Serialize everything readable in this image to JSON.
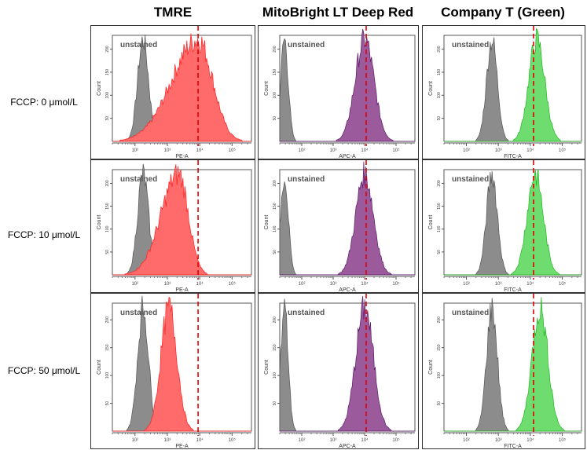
{
  "columns": [
    "TMRE",
    "MitoBright LT Deep Red",
    "Company T (Green)"
  ],
  "rows": [
    "FCCP: 0 μmol/L",
    "FCCP: 10 μmol/L",
    "FCCP: 50 μmol/L"
  ],
  "unstained_label": "unstained",
  "chart_data": {
    "type": "histogram-grid",
    "xscale": "log10",
    "xlim_log10": [
      1.3,
      5.6
    ],
    "x_ticks": [
      "10²",
      "10³",
      "10⁴",
      "10⁵"
    ],
    "ylabel": "Count",
    "y_ticks": [
      "50",
      "100",
      "150",
      "200"
    ],
    "xlabels": [
      "PE-A",
      "APC-A",
      "FITC-A"
    ],
    "colors": {
      "unstained": "#8c8c8c",
      "TMRE": "#ff6b6b",
      "MitoBright LT Deep Red": "#9b5a9b",
      "Company T (Green)": "#6fdc6f",
      "reference": "#e00000"
    },
    "reference_line_log10": [
      3.95,
      4.05,
      4.1
    ],
    "panels": [
      [
        {
          "unstained_peak": 2.25,
          "stained_peak": 3.95,
          "stained_width": 0.45,
          "skew": "left"
        },
        {
          "unstained_peak": 1.45,
          "stained_peak": 4.0,
          "stained_width": 0.3
        },
        {
          "unstained_peak": 2.8,
          "stained_peak": 4.2,
          "stained_width": 0.25
        }
      ],
      [
        {
          "unstained_peak": 2.25,
          "stained_peak": 3.35,
          "stained_width": 0.3,
          "skew": "left"
        },
        {
          "unstained_peak": 1.45,
          "stained_peak": 4.0,
          "stained_width": 0.28
        },
        {
          "unstained_peak": 2.8,
          "stained_peak": 4.15,
          "stained_width": 0.25
        }
      ],
      [
        {
          "unstained_peak": 2.25,
          "stained_peak": 3.05,
          "stained_width": 0.25
        },
        {
          "unstained_peak": 1.45,
          "stained_peak": 4.0,
          "stained_width": 0.28
        },
        {
          "unstained_peak": 2.8,
          "stained_peak": 4.3,
          "stained_width": 0.25
        }
      ]
    ]
  }
}
